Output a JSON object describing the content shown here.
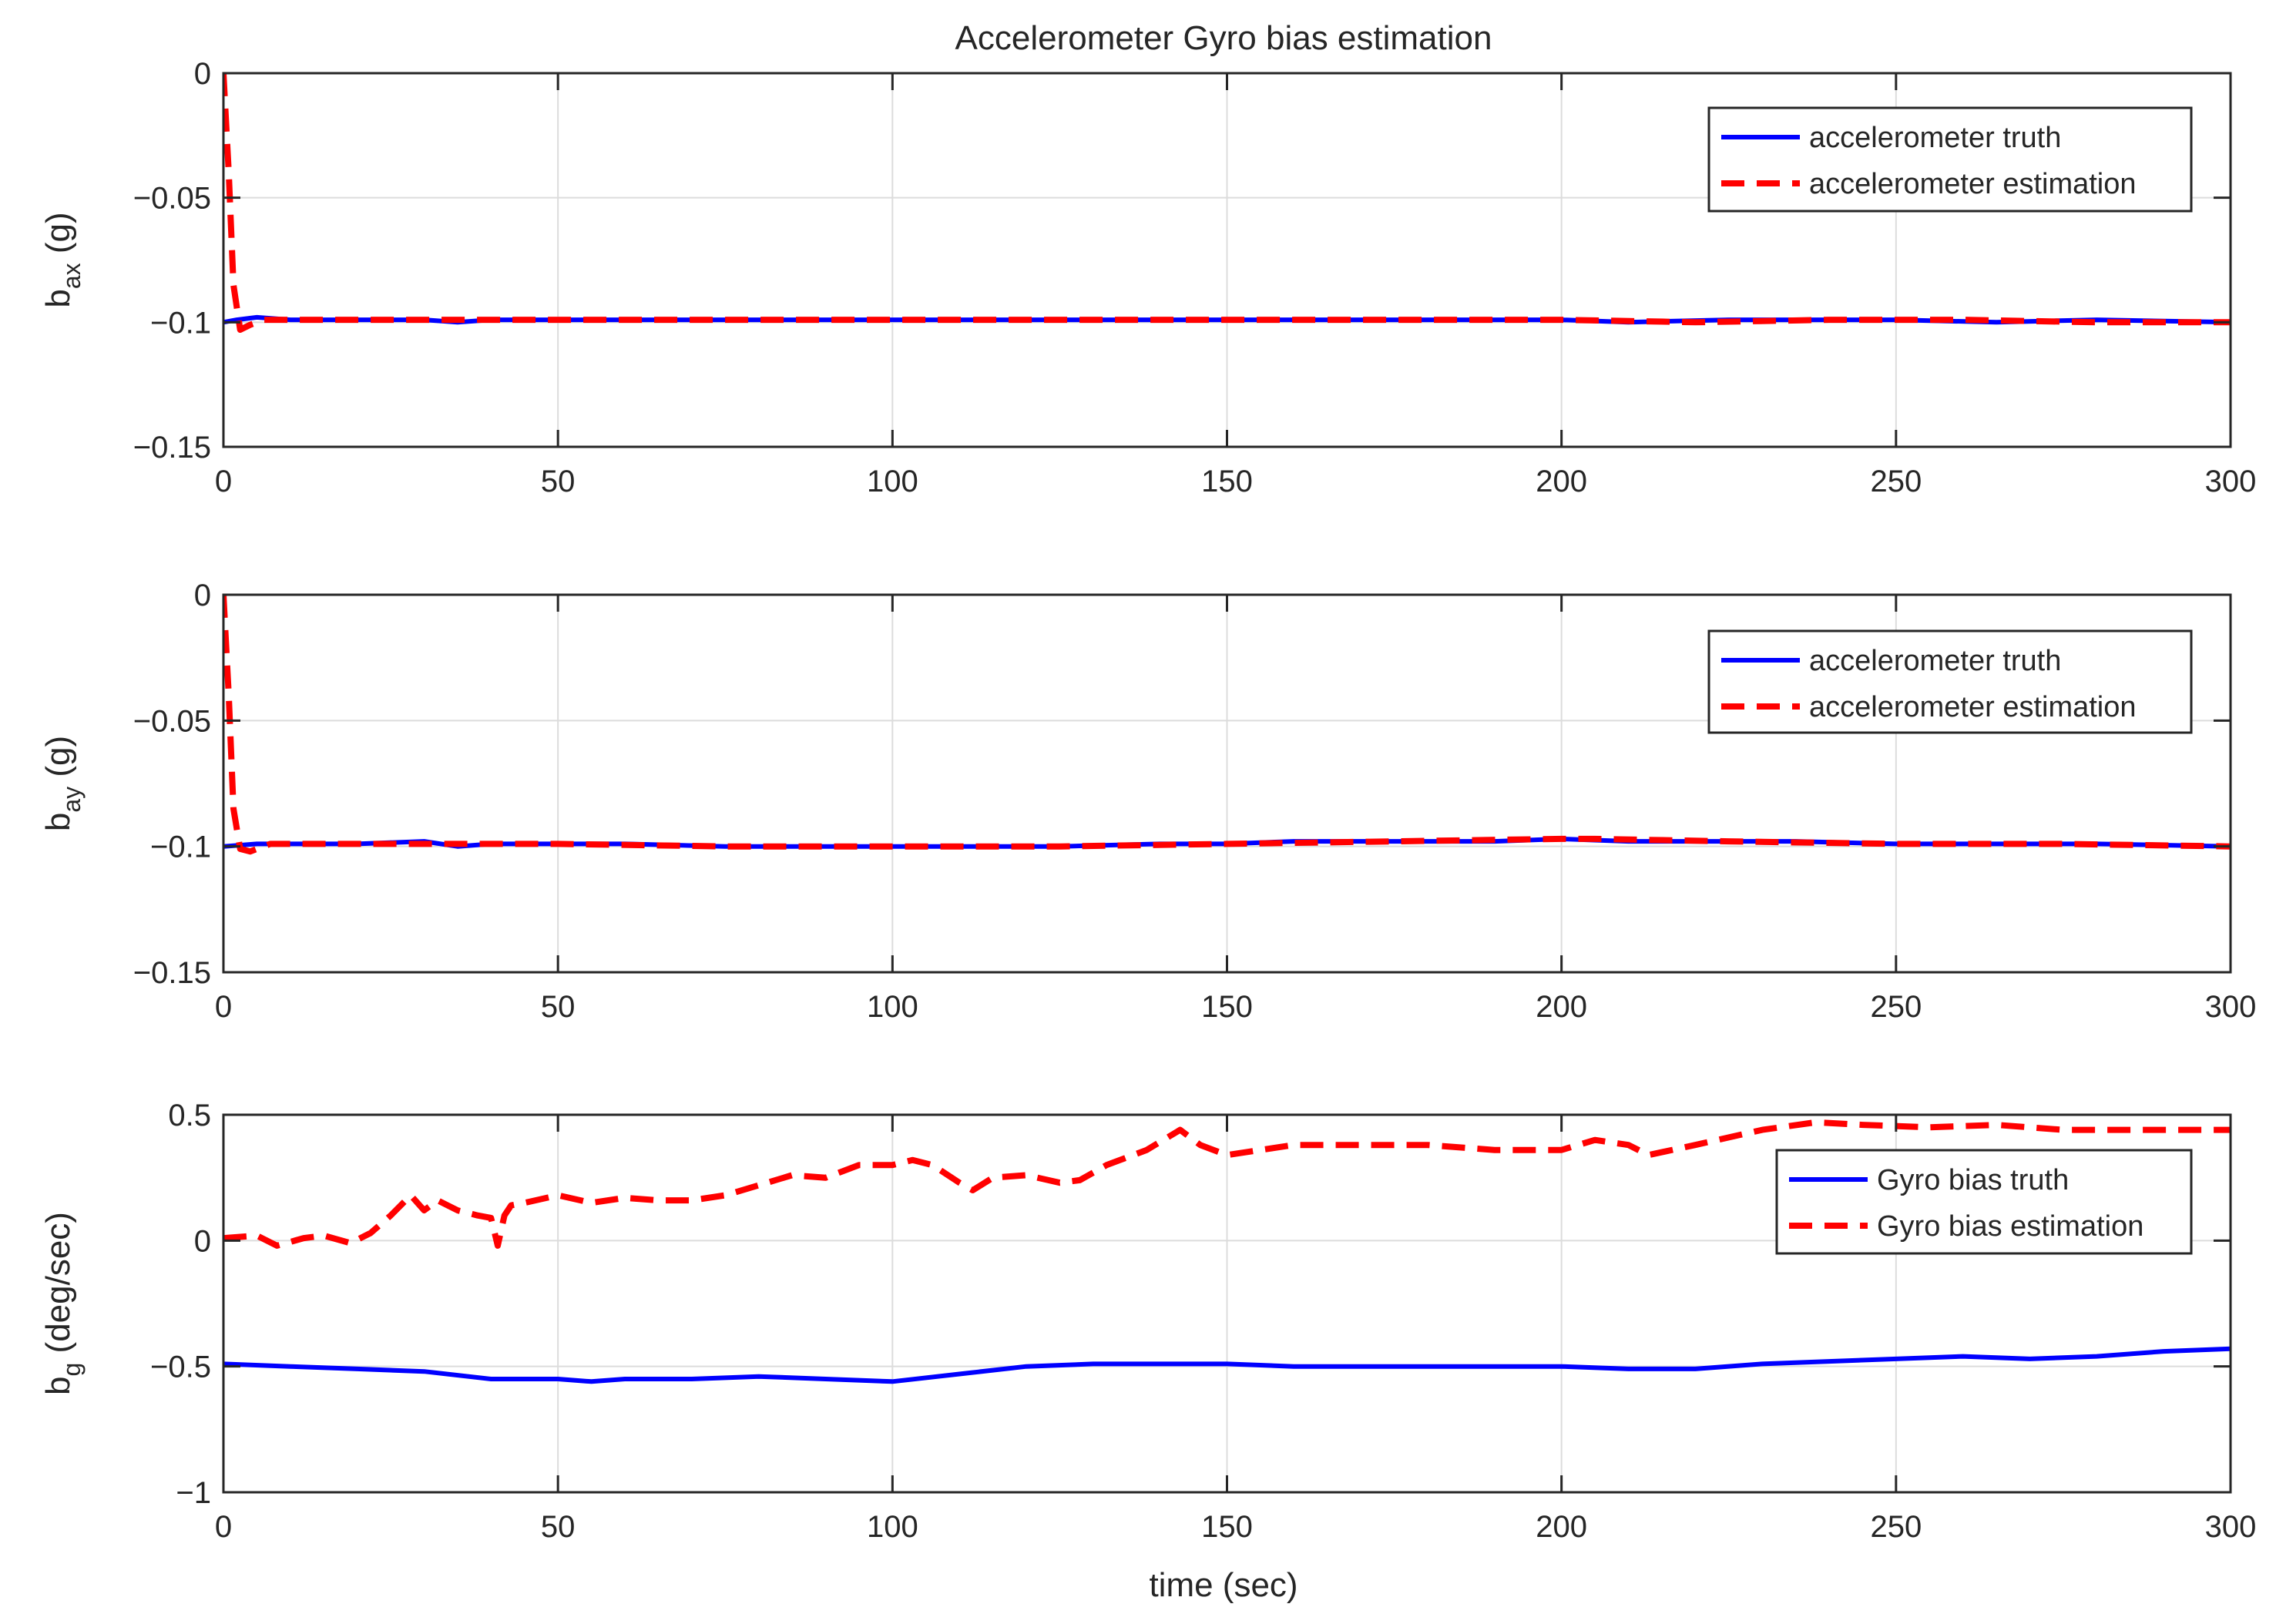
{
  "figure": {
    "title": "Accelerometer Gyro bias estimation",
    "colors": {
      "truth": "#0000ff",
      "estimation": "#ff0000",
      "grid": "#dcdcdc",
      "axis": "#262626",
      "background": "#ffffff"
    }
  },
  "chart_data": [
    {
      "type": "line",
      "ylabel": {
        "base": "b",
        "sub": "ax",
        "unit": " (g)"
      },
      "xlim": [
        0,
        300
      ],
      "ylim": [
        -0.15,
        0
      ],
      "xticks": [
        0,
        50,
        100,
        150,
        200,
        250,
        300
      ],
      "xtick_labels": [
        "0",
        "50",
        "100",
        "150",
        "200",
        "250",
        "300"
      ],
      "yticks": [
        -0.15,
        -0.1,
        -0.05,
        0
      ],
      "ytick_labels": [
        "−0.15",
        "−0.1",
        "−0.05",
        "0"
      ],
      "grid": true,
      "legend": {
        "position": "top-right",
        "entries": [
          "accelerometer truth",
          "accelerometer estimation"
        ]
      },
      "series": [
        {
          "name": "accelerometer truth",
          "style": "solid",
          "color": "#0000ff",
          "x": [
            0,
            2,
            5,
            10,
            20,
            30,
            35,
            40,
            50,
            60,
            75,
            90,
            100,
            110,
            125,
            140,
            150,
            160,
            175,
            190,
            200,
            210,
            225,
            235,
            250,
            265,
            280,
            300
          ],
          "y": [
            -0.1,
            -0.099,
            -0.098,
            -0.099,
            -0.099,
            -0.099,
            -0.1,
            -0.099,
            -0.099,
            -0.099,
            -0.099,
            -0.099,
            -0.099,
            -0.099,
            -0.099,
            -0.099,
            -0.099,
            -0.099,
            -0.099,
            -0.099,
            -0.099,
            -0.1,
            -0.099,
            -0.099,
            -0.099,
            -0.1,
            -0.099,
            -0.1
          ]
        },
        {
          "name": "accelerometer estimation",
          "style": "dashed",
          "color": "#ff0000",
          "x": [
            0,
            0.8,
            1.5,
            2.5,
            4,
            6,
            10,
            20,
            40,
            60,
            80,
            100,
            120,
            140,
            160,
            180,
            200,
            220,
            240,
            260,
            280,
            300
          ],
          "y": [
            0,
            -0.04,
            -0.085,
            -0.103,
            -0.101,
            -0.099,
            -0.099,
            -0.099,
            -0.099,
            -0.099,
            -0.099,
            -0.099,
            -0.099,
            -0.099,
            -0.099,
            -0.099,
            -0.099,
            -0.1,
            -0.099,
            -0.099,
            -0.1,
            -0.1
          ]
        }
      ]
    },
    {
      "type": "line",
      "ylabel": {
        "base": "b",
        "sub": "ay",
        "unit": " (g)"
      },
      "xlim": [
        0,
        300
      ],
      "ylim": [
        -0.15,
        0
      ],
      "xticks": [
        0,
        50,
        100,
        150,
        200,
        250,
        300
      ],
      "xtick_labels": [
        "0",
        "50",
        "100",
        "150",
        "200",
        "250",
        "300"
      ],
      "yticks": [
        -0.15,
        -0.1,
        -0.05,
        0
      ],
      "ytick_labels": [
        "−0.15",
        "−0.1",
        "−0.05",
        "0"
      ],
      "grid": true,
      "legend": {
        "position": "top-right",
        "entries": [
          "accelerometer truth",
          "accelerometer estimation"
        ]
      },
      "series": [
        {
          "name": "accelerometer truth",
          "style": "solid",
          "color": "#0000ff",
          "x": [
            0,
            5,
            10,
            20,
            30,
            35,
            40,
            50,
            60,
            75,
            90,
            100,
            110,
            125,
            140,
            150,
            160,
            175,
            190,
            200,
            210,
            225,
            235,
            250,
            265,
            280,
            300
          ],
          "y": [
            -0.1,
            -0.099,
            -0.099,
            -0.099,
            -0.098,
            -0.1,
            -0.099,
            -0.099,
            -0.099,
            -0.1,
            -0.1,
            -0.1,
            -0.1,
            -0.1,
            -0.099,
            -0.099,
            -0.098,
            -0.098,
            -0.098,
            -0.097,
            -0.098,
            -0.098,
            -0.098,
            -0.099,
            -0.099,
            -0.099,
            -0.1
          ]
        },
        {
          "name": "accelerometer estimation",
          "style": "dashed",
          "color": "#ff0000",
          "x": [
            0,
            0.8,
            1.5,
            2.5,
            4,
            7,
            12,
            25,
            50,
            75,
            100,
            125,
            150,
            175,
            200,
            205,
            225,
            250,
            275,
            300
          ],
          "y": [
            0,
            -0.04,
            -0.085,
            -0.101,
            -0.102,
            -0.099,
            -0.099,
            -0.099,
            -0.099,
            -0.1,
            -0.1,
            -0.1,
            -0.099,
            -0.098,
            -0.097,
            -0.097,
            -0.098,
            -0.099,
            -0.099,
            -0.1
          ]
        }
      ]
    },
    {
      "type": "line",
      "ylabel": {
        "base": "b",
        "sub": "g",
        "unit": " (deg/sec)"
      },
      "xlabel": "time (sec)",
      "xlim": [
        0,
        300
      ],
      "ylim": [
        -1,
        0.5
      ],
      "xticks": [
        0,
        50,
        100,
        150,
        200,
        250,
        300
      ],
      "xtick_labels": [
        "0",
        "50",
        "100",
        "150",
        "200",
        "250",
        "300"
      ],
      "yticks": [
        -1,
        -0.5,
        0,
        0.5
      ],
      "ytick_labels": [
        "−1",
        "−0.5",
        "0",
        "0.5"
      ],
      "grid": true,
      "legend": {
        "position": "right",
        "entries": [
          "Gyro bias truth",
          "Gyro bias estimation"
        ]
      },
      "series": [
        {
          "name": "Gyro bias truth",
          "style": "solid",
          "color": "#0000ff",
          "x": [
            0,
            10,
            20,
            30,
            40,
            50,
            55,
            60,
            70,
            80,
            90,
            100,
            110,
            120,
            130,
            140,
            150,
            160,
            170,
            180,
            190,
            200,
            210,
            220,
            230,
            240,
            250,
            260,
            270,
            280,
            290,
            300
          ],
          "y": [
            -0.49,
            -0.5,
            -0.51,
            -0.52,
            -0.55,
            -0.55,
            -0.56,
            -0.55,
            -0.55,
            -0.54,
            -0.55,
            -0.56,
            -0.53,
            -0.5,
            -0.49,
            -0.49,
            -0.49,
            -0.5,
            -0.5,
            -0.5,
            -0.5,
            -0.5,
            -0.51,
            -0.51,
            -0.49,
            -0.48,
            -0.47,
            -0.46,
            -0.47,
            -0.46,
            -0.44,
            -0.43
          ]
        },
        {
          "name": "Gyro bias estimation",
          "style": "dashed",
          "color": "#ff0000",
          "x": [
            0,
            5,
            8,
            12,
            15,
            19,
            22,
            25,
            28,
            30,
            32,
            35,
            38,
            40,
            41,
            42,
            43,
            45,
            50,
            55,
            60,
            65,
            70,
            75,
            80,
            85,
            90,
            95,
            100,
            103,
            106,
            110,
            112,
            115,
            120,
            125,
            128,
            132,
            138,
            143,
            146,
            150,
            155,
            160,
            170,
            180,
            190,
            200,
            205,
            210,
            213,
            220,
            230,
            238,
            245,
            255,
            265,
            275,
            285,
            300
          ],
          "y": [
            0.01,
            0.02,
            -0.02,
            0.01,
            0.02,
            -0.01,
            0.03,
            0.1,
            0.18,
            0.12,
            0.16,
            0.12,
            0.1,
            0.09,
            -0.02,
            0.1,
            0.14,
            0.15,
            0.18,
            0.15,
            0.17,
            0.16,
            0.16,
            0.18,
            0.22,
            0.26,
            0.25,
            0.3,
            0.3,
            0.32,
            0.3,
            0.23,
            0.2,
            0.25,
            0.26,
            0.23,
            0.24,
            0.3,
            0.36,
            0.44,
            0.38,
            0.34,
            0.36,
            0.38,
            0.38,
            0.38,
            0.36,
            0.36,
            0.4,
            0.38,
            0.34,
            0.38,
            0.44,
            0.47,
            0.46,
            0.45,
            0.46,
            0.44,
            0.44,
            0.44
          ]
        }
      ]
    }
  ]
}
